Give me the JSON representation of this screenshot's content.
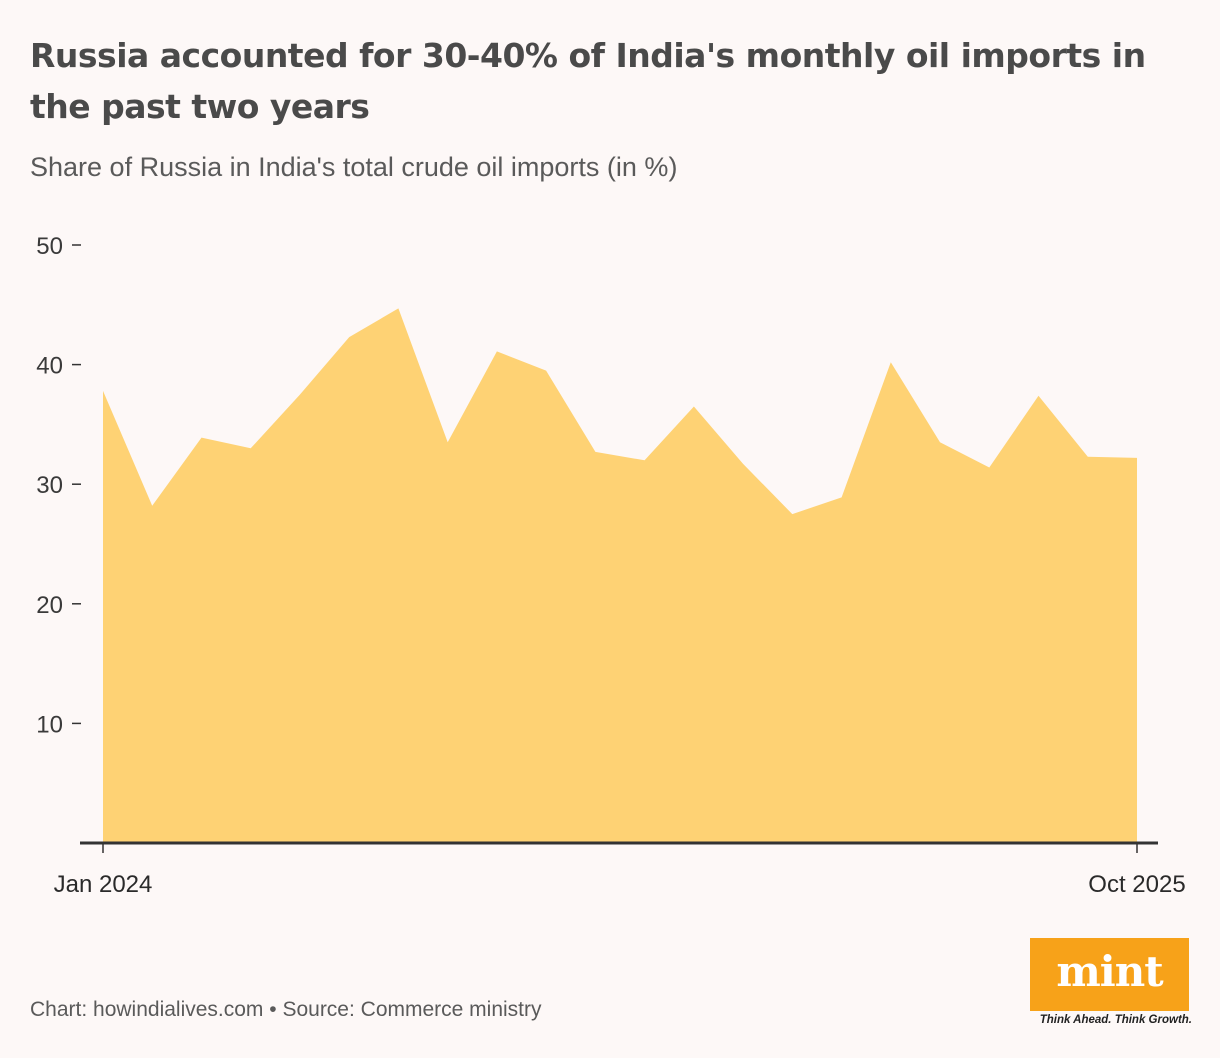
{
  "title": "Russia accounted for 30-40% of India's monthly oil imports in the past two years",
  "subtitle": "Share of Russia in India's total crude oil imports (in %)",
  "footer": "Chart: howindialives.com • Source: Commerce ministry",
  "logo": {
    "word": "mint",
    "tagline": "Think Ahead. Think Growth.",
    "color": "#f7a219"
  },
  "colors": {
    "area": "#fed274",
    "axis": "#333333",
    "background": "#fdf8f7",
    "text": "#4a4a4a"
  },
  "chart_data": {
    "type": "area",
    "x": [
      "Jan 2024",
      "Feb 2024",
      "Mar 2024",
      "Apr 2024",
      "May 2024",
      "Jun 2024",
      "Jul 2024",
      "Aug 2024",
      "Sep 2024",
      "Oct 2024",
      "Nov 2024",
      "Dec 2024",
      "Jan 2025",
      "Feb 2025",
      "Mar 2025",
      "Apr 2025",
      "May 2025",
      "Jun 2025",
      "Jul 2025",
      "Aug 2025",
      "Sep 2025",
      "Oct 2025"
    ],
    "values": [
      37.8,
      28.2,
      33.9,
      33.0,
      37.5,
      42.3,
      44.7,
      33.5,
      41.1,
      39.5,
      32.7,
      32.0,
      36.5,
      31.7,
      27.5,
      28.9,
      40.2,
      33.5,
      31.4,
      37.4,
      32.3,
      32.2
    ],
    "x_tick_labels": [
      "Jan 2024",
      "Oct 2025"
    ],
    "y_ticks": [
      10,
      20,
      30,
      40,
      50
    ],
    "ylim": [
      0,
      50
    ],
    "grid": false,
    "legend": "none"
  }
}
